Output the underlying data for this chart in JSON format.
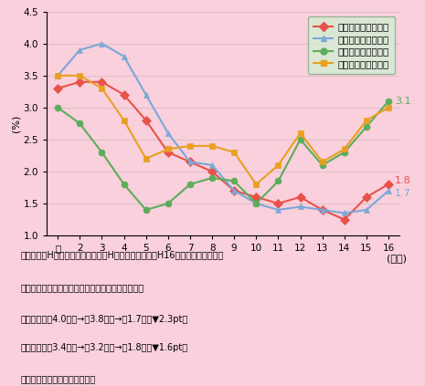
{
  "background_color": "#F9D0DC",
  "ylabel": "(%)",
  "xlabel": "(年度)",
  "ylim": [
    1.0,
    4.5
  ],
  "yticks": [
    1.0,
    1.5,
    2.0,
    2.5,
    3.0,
    3.5,
    4.0,
    4.5
  ],
  "x_labels": [
    "元",
    "2",
    "3",
    "4",
    "5",
    "6",
    "7",
    "8",
    "9",
    "10",
    "11",
    "12",
    "13",
    "14",
    "15",
    "16"
  ],
  "series": [
    {
      "name": "建設業（経常利益）",
      "color": "#E8524A",
      "marker": "D",
      "markersize": 5,
      "values": [
        3.3,
        3.4,
        3.4,
        3.2,
        2.8,
        2.3,
        2.15,
        2.0,
        1.7,
        1.6,
        1.5,
        1.6,
        1.4,
        1.25,
        1.6,
        1.8
      ]
    },
    {
      "name": "建設業（営業利益）",
      "color": "#7BA8D8",
      "marker": "^",
      "markersize": 5,
      "values": [
        3.5,
        3.9,
        4.0,
        3.8,
        3.2,
        2.6,
        2.15,
        2.1,
        1.7,
        1.5,
        1.4,
        1.45,
        1.4,
        1.35,
        1.4,
        1.7
      ]
    },
    {
      "name": "全産業（経常利益）",
      "color": "#5CAD5A",
      "marker": "o",
      "markersize": 5,
      "values": [
        3.0,
        2.75,
        2.3,
        1.8,
        1.4,
        1.5,
        1.8,
        1.9,
        1.85,
        1.5,
        1.85,
        2.5,
        2.1,
        2.3,
        2.7,
        3.1
      ]
    },
    {
      "name": "全産業（営業利益）",
      "color": "#E8A020",
      "marker": "s",
      "markersize": 5,
      "values": [
        3.5,
        3.5,
        3.3,
        2.8,
        2.2,
        2.35,
        2.4,
        2.4,
        2.3,
        1.8,
        2.1,
        2.6,
        2.15,
        2.35,
        2.8,
        3.0
      ]
    }
  ],
  "legend_facecolor": "#D4EED4",
  "legend_edgecolor": "#88AA88",
  "annot_31": {
    "text": "3.1",
    "xi": 15,
    "y": 3.1,
    "color": "#5CAD5A"
  },
  "annot_18": {
    "text": "1.8",
    "xi": 15,
    "y": 1.8,
    "color": "#E8524A"
  },
  "annot_17": {
    "text": "1.7",
    "xi": 15,
    "y": 1.7,
    "color": "#7BA8D8"
  },
  "footer_row1": "　　　　　H３年度　　　　　　　H４年度　　　　　H16年度（対ピーク比）",
  "footer_row2": "　　（利益率のピーク）　　（建設投資のピーク）",
  "footer_row3": "営業利益率　4.0％　→　3.8％　→　1.7％（▼2.3pt）",
  "footer_row4": "経常利益率　3.4％　→　3.2％　→　1.8％（▼1.6pt）",
  "footer_source": "資料）財務省「法人企業統計」"
}
